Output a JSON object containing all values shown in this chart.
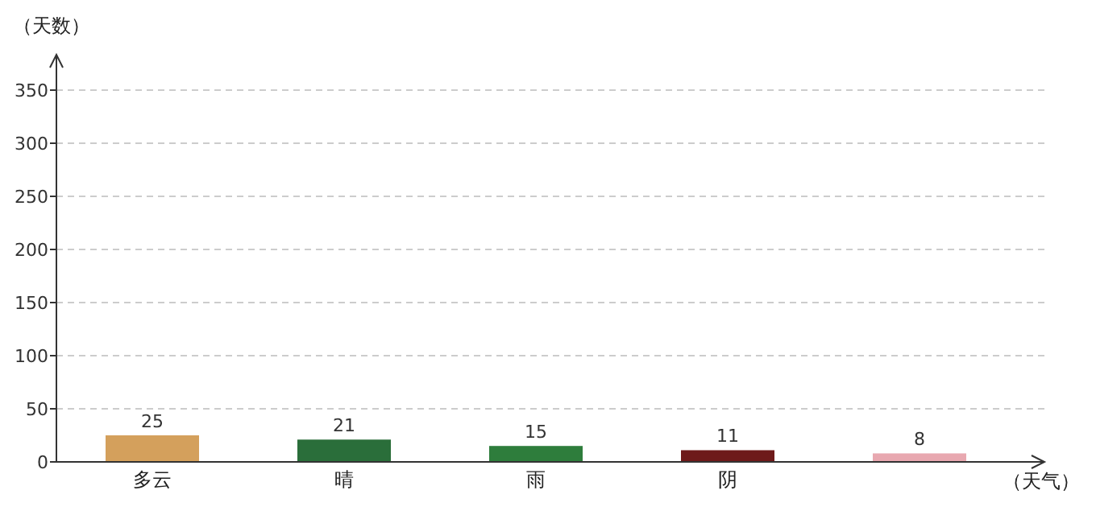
{
  "chart_data": {
    "type": "bar",
    "ylabel": "（天数）",
    "xlabel": "（天气）",
    "categories": [
      "多云",
      "晴",
      "雨",
      "阴",
      null
    ],
    "values": [
      25,
      21,
      15,
      11,
      8
    ],
    "colors": [
      "#d4a05c",
      "#2a6e3a",
      "#2e7d3c",
      "#6e1a1a",
      "#e8a8b0"
    ],
    "ylim": [
      0,
      350
    ],
    "yticks": [
      0,
      50,
      100,
      150,
      200,
      250,
      300,
      350
    ],
    "grid": "y",
    "data_labels": true
  }
}
